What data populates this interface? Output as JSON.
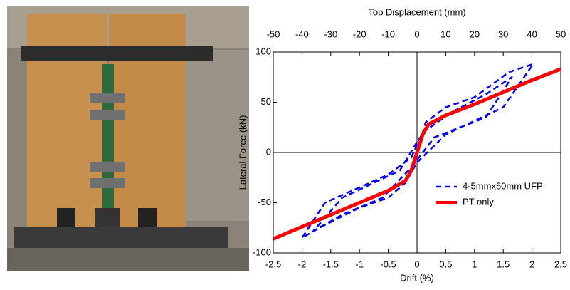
{
  "chart_data": {
    "type": "line",
    "xlabel": "Drift (%)",
    "ylabel": "Lateral Force (kN)",
    "x2label": "Top Displacement (mm)",
    "xlim": [
      -2.5,
      2.5
    ],
    "xticks": [
      -2.5,
      -2,
      -1.5,
      -1,
      -0.5,
      0,
      0.5,
      1,
      1.5,
      2,
      2.5
    ],
    "x2lim": [
      -50,
      50
    ],
    "x2ticks": [
      -50,
      -40,
      -30,
      -20,
      -10,
      0,
      10,
      20,
      30,
      40,
      50
    ],
    "ylim": [
      -100,
      100
    ],
    "yticks": [
      -100,
      -50,
      0,
      50,
      100
    ],
    "legend": "lower right",
    "series": [
      {
        "name": "4-5mmx50mm UFP",
        "color": "#0000ff",
        "dash": true,
        "x": [
          0,
          0.15,
          0.5,
          1,
          1.6,
          2.02,
          1.5,
          0.5,
          0,
          -0.2,
          -0.5,
          -1,
          -1.7,
          -2,
          -1.6,
          -0.5,
          -0.1,
          0.1,
          0.6,
          1.2,
          1.65,
          1.2,
          0.3,
          -0.1,
          -0.6,
          -1.3,
          -1.8,
          -1.3,
          -0.3,
          0.05
        ],
        "values": [
          0,
          30,
          45,
          55,
          80,
          88,
          45,
          18,
          -10,
          -30,
          -45,
          -55,
          -75,
          -85,
          -50,
          -22,
          -5,
          20,
          40,
          58,
          75,
          35,
          15,
          -15,
          -45,
          -62,
          -78,
          -45,
          -18,
          15
        ]
      },
      {
        "name": "PT only",
        "color": "#ff0000",
        "dash": false,
        "x": [
          -2.5,
          -2,
          -1.5,
          -1,
          -0.5,
          -0.2,
          -0.1,
          0,
          0.1,
          0.2,
          0.5,
          1,
          1.5,
          2,
          2.5
        ],
        "values": [
          -86,
          -74,
          -62,
          -50,
          -38,
          -28,
          -18,
          0,
          18,
          28,
          37,
          48,
          60,
          72,
          83
        ]
      }
    ]
  }
}
